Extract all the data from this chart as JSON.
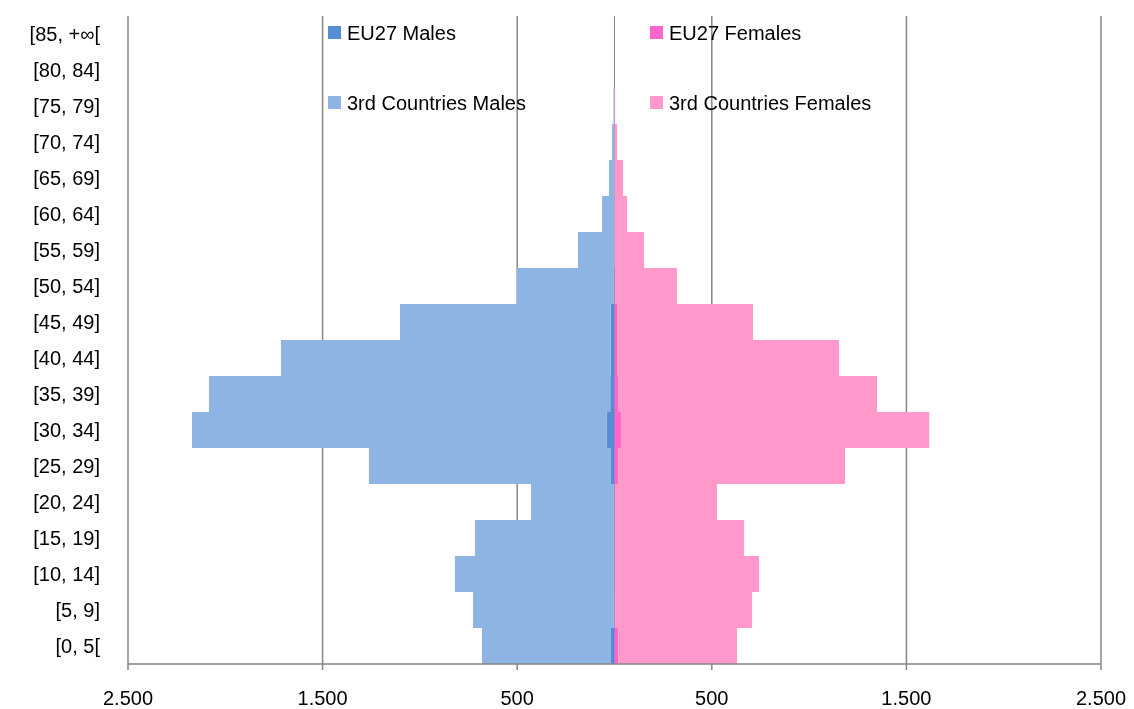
{
  "chart_data": {
    "type": "bar",
    "orientation": "horizontal",
    "stacked": true,
    "categories": [
      "[85, +∞[",
      "[80, 84]",
      "[75, 79]",
      "[70, 74]",
      "[65, 69]",
      "[60, 64]",
      "[55, 59]",
      "[50, 54]",
      "[45, 49]",
      "[40, 44]",
      "[35, 39]",
      "[30, 34]",
      "[25, 29]",
      "[20, 24]",
      "[15, 19]",
      "[10, 14]",
      "[5, 9]",
      "[0, 5["
    ],
    "series": [
      {
        "name": "EU27 Males",
        "color": "#558ed5",
        "values": [
          null,
          null,
          null,
          null,
          null,
          null,
          null,
          -3,
          -20,
          -20,
          -22,
          -40,
          -18,
          -3,
          -3,
          -3,
          -5,
          -18
        ]
      },
      {
        "name": "EU27 Females",
        "color": "#ff66cc",
        "values": [
          null,
          null,
          null,
          null,
          null,
          null,
          null,
          3,
          13,
          13,
          18,
          33,
          18,
          3,
          3,
          3,
          5,
          20
        ]
      },
      {
        "name": "3rd Countries Males",
        "color": "#8eb4e3",
        "values": [
          0,
          0,
          -5,
          -13,
          -28,
          -64,
          -188,
          -498,
          -1082,
          -1694,
          -2062,
          -2131,
          -1244,
          -426,
          -714,
          -817,
          -722,
          -663
        ]
      },
      {
        "name": "3rd Countries Females",
        "color": "#ff99cc",
        "values": [
          0,
          0,
          3,
          13,
          44,
          64,
          152,
          318,
          699,
          1141,
          1331,
          1584,
          1167,
          524,
          663,
          740,
          702,
          610
        ]
      }
    ],
    "xlim": [
      -2500,
      2500
    ],
    "xticks": [
      {
        "value": -2500,
        "label": "2.500"
      },
      {
        "value": -1500,
        "label": "1.500"
      },
      {
        "value": -500,
        "label": "500"
      },
      {
        "value": 500,
        "label": "500"
      },
      {
        "value": 1500,
        "label": "1.500"
      },
      {
        "value": 2500,
        "label": "2.500"
      }
    ],
    "grid": "x",
    "legend": "top"
  }
}
